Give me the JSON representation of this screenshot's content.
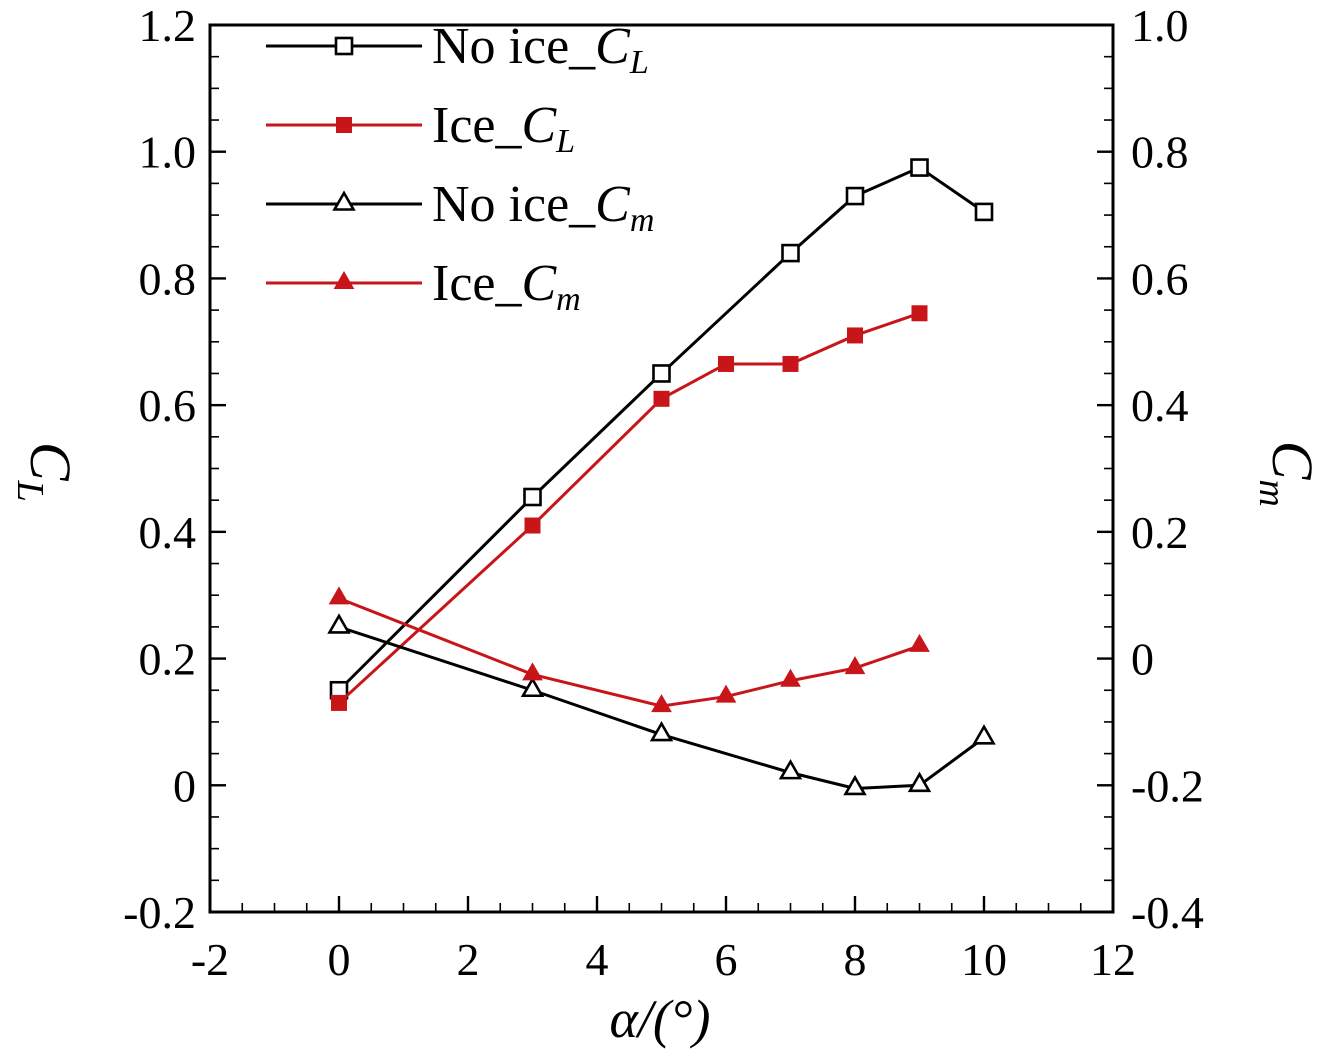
{
  "chart_data": {
    "type": "line",
    "title": "",
    "x_axis": {
      "title": "α/(°)",
      "range": [
        -2,
        12
      ],
      "ticks": [
        -2,
        0,
        2,
        4,
        6,
        8,
        10,
        12
      ],
      "tick_labels": [
        "-2",
        "0",
        "2",
        "4",
        "6",
        "8",
        "10",
        "12"
      ],
      "minor_step": 0.5
    },
    "left_axis": {
      "title_symbol": "C",
      "title_sub": "L",
      "range": [
        -0.2,
        1.2
      ],
      "ticks": [
        -0.2,
        0,
        0.2,
        0.4,
        0.6,
        0.8,
        1.0,
        1.2
      ],
      "tick_labels": [
        "-0.2",
        "0",
        "0.2",
        "0.4",
        "0.6",
        "0.8",
        "1.0",
        "1.2"
      ],
      "minor_step": 0.05
    },
    "right_axis": {
      "title_symbol": "C",
      "title_sub": "m",
      "range": [
        -0.4,
        1.0
      ],
      "ticks": [
        -0.4,
        -0.2,
        0,
        0.2,
        0.4,
        0.6,
        0.8,
        1.0
      ],
      "tick_labels": [
        "-0.4",
        "-0.2",
        "0",
        "0.2",
        "0.4",
        "0.6",
        "0.8",
        "1.0"
      ],
      "minor_step": 0.05
    },
    "colors": {
      "black": "#000000",
      "red": "#c8151a"
    },
    "grid": false,
    "legend": {
      "position": "top-left-inside"
    },
    "series": [
      {
        "id": "no-ice-cl",
        "label": "No ice_C_L",
        "label_prefix": "No ice_",
        "label_symbol": "C",
        "label_sub": "L",
        "axis": "left",
        "color": "black",
        "marker": "square-open",
        "x": [
          0,
          3,
          5,
          7,
          8,
          9,
          10
        ],
        "y": [
          0.15,
          0.455,
          0.65,
          0.84,
          0.93,
          0.975,
          0.905
        ]
      },
      {
        "id": "ice-cl",
        "label": "Ice_C_L",
        "label_prefix": "Ice_",
        "label_symbol": "C",
        "label_sub": "L",
        "axis": "left",
        "color": "red",
        "marker": "square-filled",
        "x": [
          0,
          3,
          5,
          6,
          7,
          8,
          9
        ],
        "y": [
          0.13,
          0.41,
          0.61,
          0.665,
          0.665,
          0.71,
          0.745
        ]
      },
      {
        "id": "no-ice-cm",
        "label": "No ice_C_m",
        "label_prefix": "No ice_",
        "label_symbol": "C",
        "label_sub": "m",
        "axis": "right",
        "color": "black",
        "marker": "triangle-open",
        "x": [
          0,
          3,
          5,
          7,
          8,
          9,
          10
        ],
        "y": [
          0.05,
          -0.05,
          -0.12,
          -0.18,
          -0.205,
          -0.2,
          -0.125
        ]
      },
      {
        "id": "ice-cm",
        "label": "Ice_C_m",
        "label_prefix": "Ice_",
        "label_symbol": "C",
        "label_sub": "m",
        "axis": "right",
        "color": "red",
        "marker": "triangle-filled",
        "x": [
          0,
          3,
          5,
          6,
          7,
          8,
          9
        ],
        "y": [
          0.095,
          -0.025,
          -0.075,
          -0.06,
          -0.035,
          -0.015,
          0.02
        ]
      }
    ]
  }
}
